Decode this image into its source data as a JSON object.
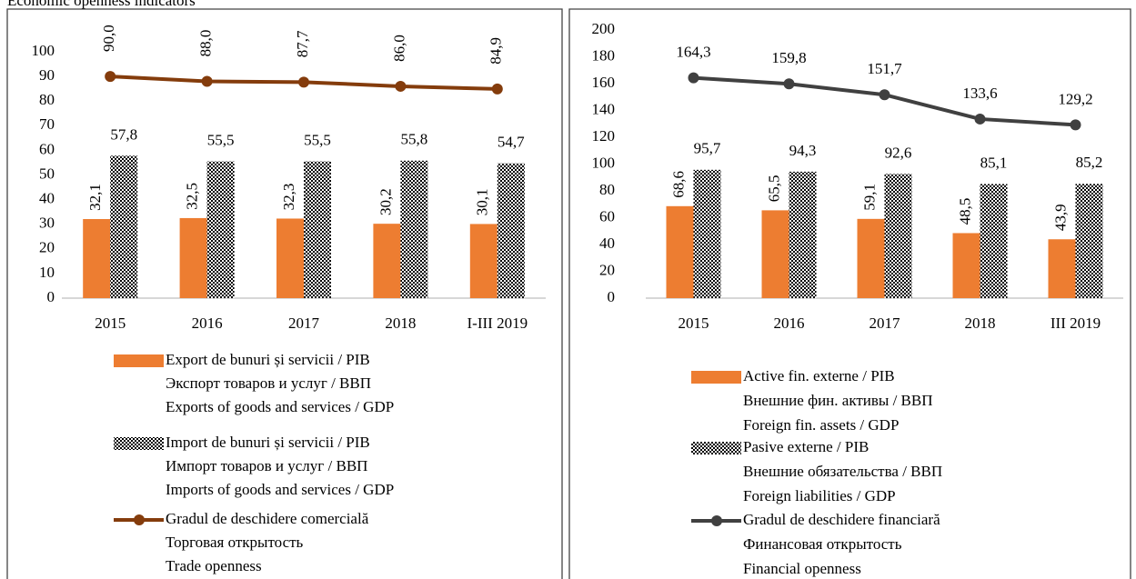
{
  "title": "Economic openness indicators",
  "chart_data": [
    {
      "type": "combo",
      "categories": [
        "2015",
        "2016",
        "2017",
        "2018",
        "I-III 2019"
      ],
      "ylim": [
        0,
        100
      ],
      "yticks": [
        0,
        10,
        20,
        30,
        40,
        50,
        60,
        70,
        80,
        90,
        100
      ],
      "series": [
        {
          "type": "bar",
          "fill": "solid",
          "color": "#ed7d31",
          "name": [
            "Export de bunuri și servicii / PIB",
            "Экспорт товаров и услуг / ВВП",
            "Exports of goods and services / GDP"
          ],
          "values": [
            32.1,
            32.5,
            32.3,
            30.2,
            30.1
          ],
          "value_labels": [
            "32,1",
            "32,5",
            "32,3",
            "30,2",
            "30,1"
          ]
        },
        {
          "type": "bar",
          "fill": "checker",
          "color": "#000000",
          "name": [
            "Import de bunuri și servicii / PIB",
            "Импорт товаров и услуг / ВВП",
            "Imports of goods and services / GDP"
          ],
          "values": [
            57.8,
            55.5,
            55.5,
            55.8,
            54.7
          ],
          "value_labels": [
            "57,8",
            "55,5",
            "55,5",
            "55,8",
            "54,7"
          ]
        },
        {
          "type": "line",
          "color": "#843c0c",
          "name": [
            "Gradul de deschidere comercială",
            "Торговая открытость",
            "Trade openness"
          ],
          "values": [
            90.0,
            88.0,
            87.7,
            86.0,
            84.9
          ],
          "value_labels": [
            "90,0",
            "88,0",
            "87,7",
            "86,0",
            "84,9"
          ]
        }
      ]
    },
    {
      "type": "combo",
      "categories": [
        "2015",
        "2016",
        "2017",
        "2018",
        "III 2019"
      ],
      "ylim": [
        0,
        200
      ],
      "yticks": [
        0,
        20,
        40,
        60,
        80,
        100,
        120,
        140,
        160,
        180,
        200
      ],
      "series": [
        {
          "type": "bar",
          "fill": "solid",
          "color": "#ed7d31",
          "name": [
            "Active fin. externe / PIB",
            "Внешние фин. активы / ВВП",
            "Foreign fin. assets / GDP"
          ],
          "values": [
            68.6,
            65.5,
            59.1,
            48.5,
            43.9
          ],
          "value_labels": [
            "68,6",
            "65,5",
            "59,1",
            "48,5",
            "43,9"
          ]
        },
        {
          "type": "bar",
          "fill": "checker",
          "color": "#000000",
          "name": [
            "Pasive externe / PIB",
            "Внешние обязательства / ВВП",
            "Foreign liabilities / GDP"
          ],
          "values": [
            95.7,
            94.3,
            92.6,
            85.1,
            85.2
          ],
          "value_labels": [
            "95,7",
            "94,3",
            "92,6",
            "85,1",
            "85,2"
          ]
        },
        {
          "type": "line",
          "color": "#404040",
          "name": [
            "Gradul de deschidere financiară",
            "Финансовая открытость",
            "Financial openness"
          ],
          "values": [
            164.3,
            159.8,
            151.7,
            133.6,
            129.2
          ],
          "value_labels": [
            "164,3",
            "159,8",
            "151,7",
            "133,6",
            "129,2"
          ]
        }
      ]
    }
  ]
}
